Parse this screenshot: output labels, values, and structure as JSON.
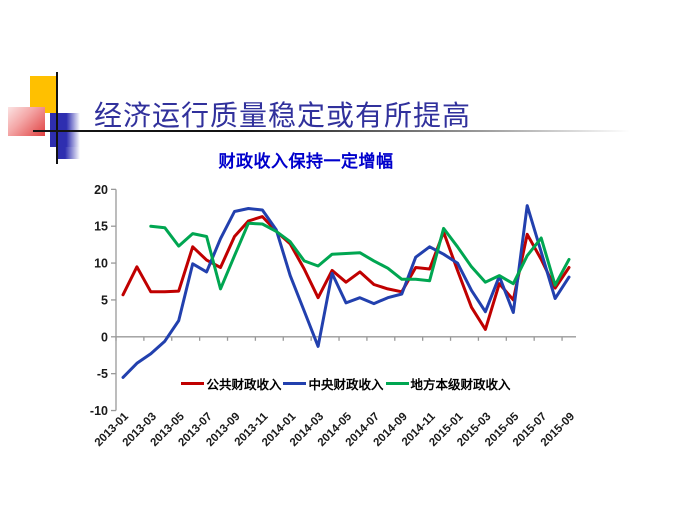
{
  "slide": {
    "title": "经济运行质量稳定或有所提高",
    "subtitle": "财政收入保持一定增幅"
  },
  "chart_data": {
    "type": "line",
    "title": "财政收入保持一定增幅",
    "x": [
      "2013-01",
      "2013-02",
      "2013-03",
      "2013-04",
      "2013-05",
      "2013-06",
      "2013-07",
      "2013-08",
      "2013-09",
      "2013-10",
      "2013-11",
      "2013-12",
      "2014-01",
      "2014-02",
      "2014-03",
      "2014-04",
      "2014-05",
      "2014-06",
      "2014-07",
      "2014-08",
      "2014-09",
      "2014-10",
      "2014-11",
      "2014-12",
      "2015-01",
      "2015-02",
      "2015-03",
      "2015-04",
      "2015-05",
      "2015-06",
      "2015-07",
      "2015-08",
      "2015-09"
    ],
    "x_tick_labels": [
      "2013-01",
      "2013-03",
      "2013-05",
      "2013-07",
      "2013-09",
      "2013-11",
      "2014-01",
      "2014-03",
      "2014-05",
      "2014-07",
      "2014-09",
      "2014-11",
      "2015-01",
      "2015-03",
      "2015-05",
      "2015-07",
      "2015-09"
    ],
    "ylim": [
      -10,
      20
    ],
    "yticks": [
      20,
      15,
      10,
      5,
      0,
      -5,
      -10
    ],
    "grid": false,
    "legend_position": "bottom-inside",
    "axis_color": "#999999",
    "series": [
      {
        "name": "公共财政收入",
        "color": "#C00000",
        "values": [
          5.7,
          9.5,
          6.1,
          6.1,
          6.2,
          12.2,
          10.4,
          9.4,
          13.6,
          15.7,
          16.3,
          14.3,
          12.6,
          9.2,
          5.3,
          9.0,
          7.4,
          8.8,
          7.1,
          6.5,
          6.1,
          9.4,
          9.2,
          14.2,
          9.0,
          4.0,
          1.0,
          7.2,
          5.0,
          13.9,
          10.5,
          6.6,
          9.4
        ]
      },
      {
        "name": "中央财政收入",
        "color": "#2240AE",
        "values": [
          -5.5,
          -3.6,
          -2.3,
          -0.6,
          2.2,
          9.9,
          8.8,
          13.3,
          17.0,
          17.4,
          17.2,
          14.5,
          8.3,
          3.5,
          -1.3,
          8.6,
          4.6,
          5.3,
          4.5,
          5.3,
          5.8,
          10.8,
          12.2,
          11.2,
          10.0,
          6.3,
          3.4,
          8.2,
          3.3,
          17.8,
          11.5,
          5.2,
          8.1
        ]
      },
      {
        "name": "地方本级财政收入",
        "color": "#00A651",
        "values": [
          null,
          null,
          15.0,
          14.8,
          12.3,
          14.0,
          13.6,
          6.5,
          11.0,
          15.4,
          15.3,
          14.3,
          12.9,
          10.3,
          9.6,
          11.2,
          11.3,
          11.4,
          10.3,
          9.3,
          7.8,
          7.8,
          7.6,
          14.7,
          12.2,
          9.5,
          7.4,
          8.3,
          7.2,
          11.0,
          13.4,
          7.0,
          10.5
        ]
      }
    ]
  }
}
